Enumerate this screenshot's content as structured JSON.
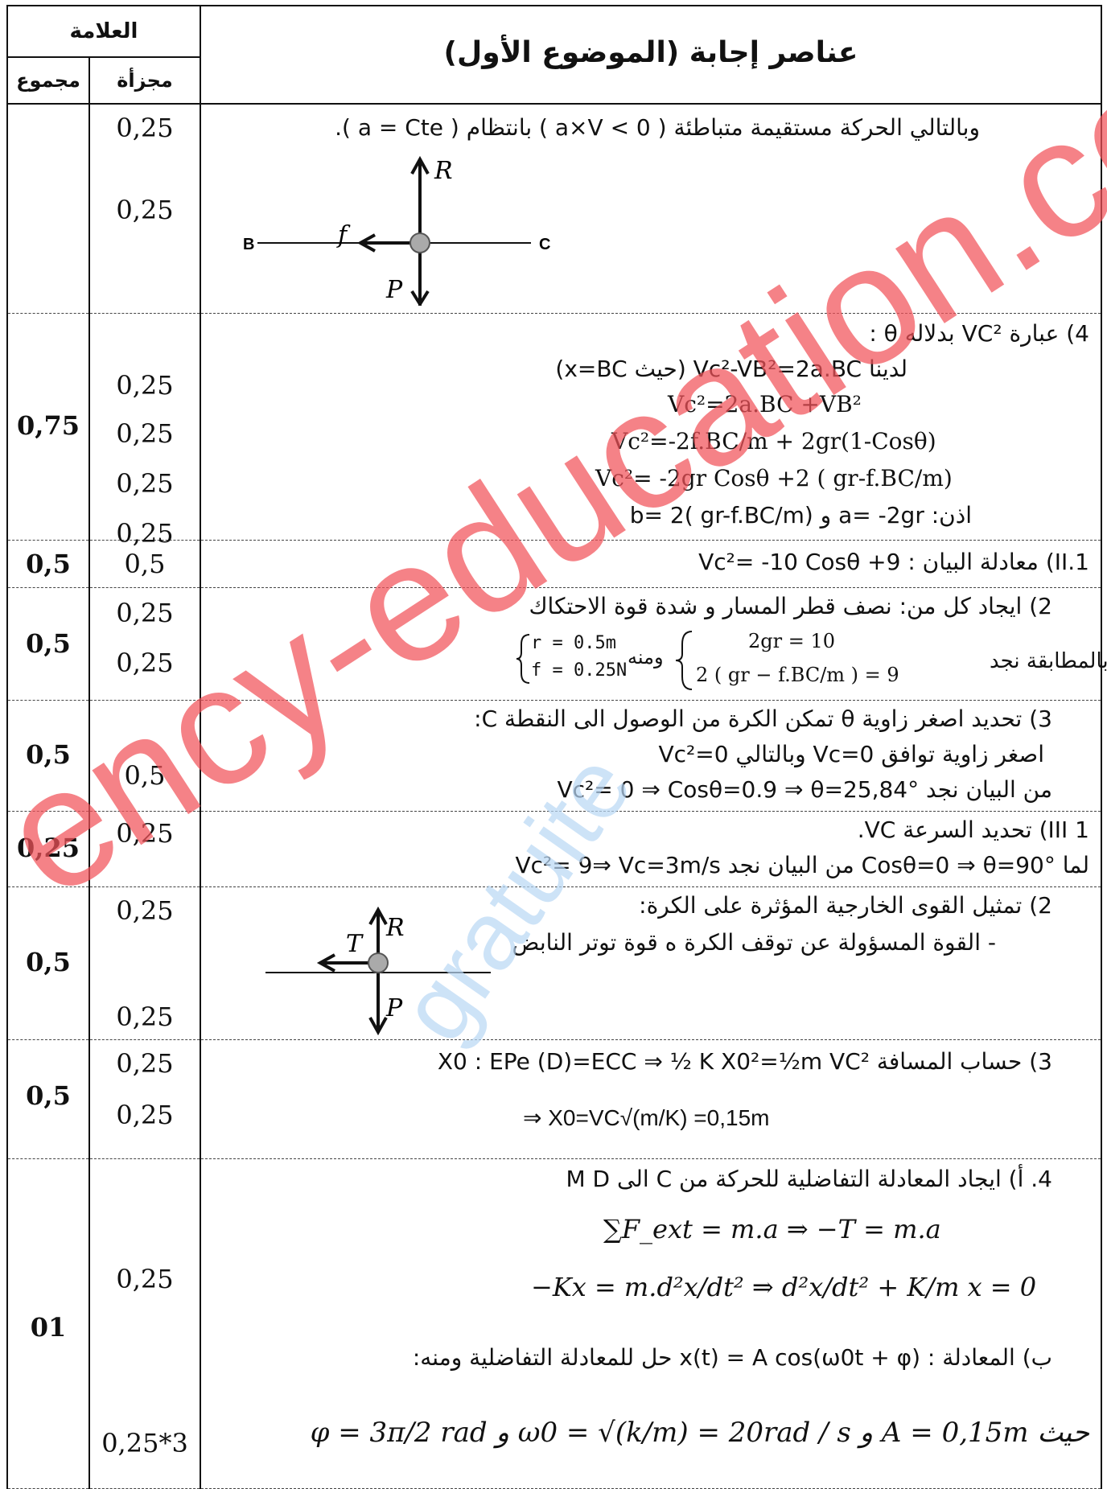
{
  "header": {
    "mark_label": "العلامة",
    "title": "عناصر إجابة (الموضوع الأول)",
    "total_label": "مجموع",
    "part_label": "مجزأة"
  },
  "rows": [
    {
      "total": "",
      "parts": [
        "0,25",
        "0,25"
      ],
      "lines": [
        "وبالتالي الحركة مستقيمة متباطئة ( a×V < 0 ) بانتظام ( a = Cte ).",
        "B",
        "C",
        "R",
        "f",
        "P"
      ]
    },
    {
      "total": "0,75",
      "parts": [
        "0,25",
        "0,25",
        "0,25",
        "0,25"
      ],
      "lines": [
        "4) عبارة VC² بدلاله θ :",
        "لدينا Vc²-VB²=2a.BC (حيث x=BC)",
        "Vc²=2a.BC +VB²",
        "Vc²=-2f.BC/m + 2gr(1-Cosθ)",
        "Vc²= -2gr Cosθ +2 ( gr-f.BC/m)",
        "اذن: a= -2gr و b= 2( gr-f.BC/m)"
      ]
    },
    {
      "total": "0,5",
      "parts": [
        "0,5"
      ],
      "lines": [
        "1.II) معادلة البيان : Vc²= -10 Cosθ +9"
      ]
    },
    {
      "total": "0,5",
      "parts": [
        "0,25",
        "0,25"
      ],
      "lines": [
        "2) ايجاد كل من: نصف قطر المسار و شدة قوة الاحتكاك",
        "بالمطابقة نجد",
        "2gr = 10",
        "2 ( gr − f.BC/m ) = 9",
        "ومنه",
        "r = 0.5m",
        "f = 0.25N"
      ]
    },
    {
      "total": "0,5",
      "parts": [
        "0,5"
      ],
      "lines": [
        "3) تحديد اصغر زاوية θ تمكن الكرة من الوصول الى النقطة C:",
        "اصغر زاوية توافق Vc=0 وبالتالي Vc²=0",
        "من البيان نجد Vc²= 0 ⇒ Cosθ=0.9 ⇒ θ=25,84°"
      ]
    },
    {
      "total": "0,25",
      "parts": [
        "0,25"
      ],
      "lines": [
        "III 1) تحديد السرعة VC.",
        "لما Cosθ=0 ⇒ θ=90° من البيان نجد Vc²= 9⇒ Vc=3m/s"
      ]
    },
    {
      "total": "0,5",
      "parts": [
        "0,25",
        "0,25"
      ],
      "lines": [
        "2) تمثيل القوى الخارجية المؤثرة على الكرة:",
        "- القوة المسؤولة عن توقف الكرة ه قوة توتر النابض",
        "T",
        "R",
        "P"
      ]
    },
    {
      "total": "0,5",
      "parts": [
        "0,25",
        "0,25"
      ],
      "lines": [
        "3) حساب المسافة X0 : EPe (D)=ECC ⇒ ½ K X0²=½m VC²",
        "⇒ X0=VC√(m/K) =0,15m"
      ]
    },
    {
      "total": "01",
      "parts": [
        "0,25",
        "0,25*3"
      ],
      "lines": [
        "4. أ) ايجاد المعادلة التفاضلية للحركة من C الى M D",
        "∑F_ext = m.a ⇒ −T = m.a",
        "−Kx = m.d²x/dt² ⇒ d²x/dt² + K/m x = 0",
        "ب) المعادلة : x(t) = A cos(ω0t + φ) حل للمعادلة التفاضلية ومنه:",
        "حيث A = 0,15m و ω0 = √(k/m) = 20rad / s و φ = 3π/2 rad"
      ]
    }
  ],
  "watermark": {
    "text_red": "ency-education.com",
    "text_blue": "gratuite",
    "red": "#f2535a",
    "blue": "#b9d8f5"
  }
}
